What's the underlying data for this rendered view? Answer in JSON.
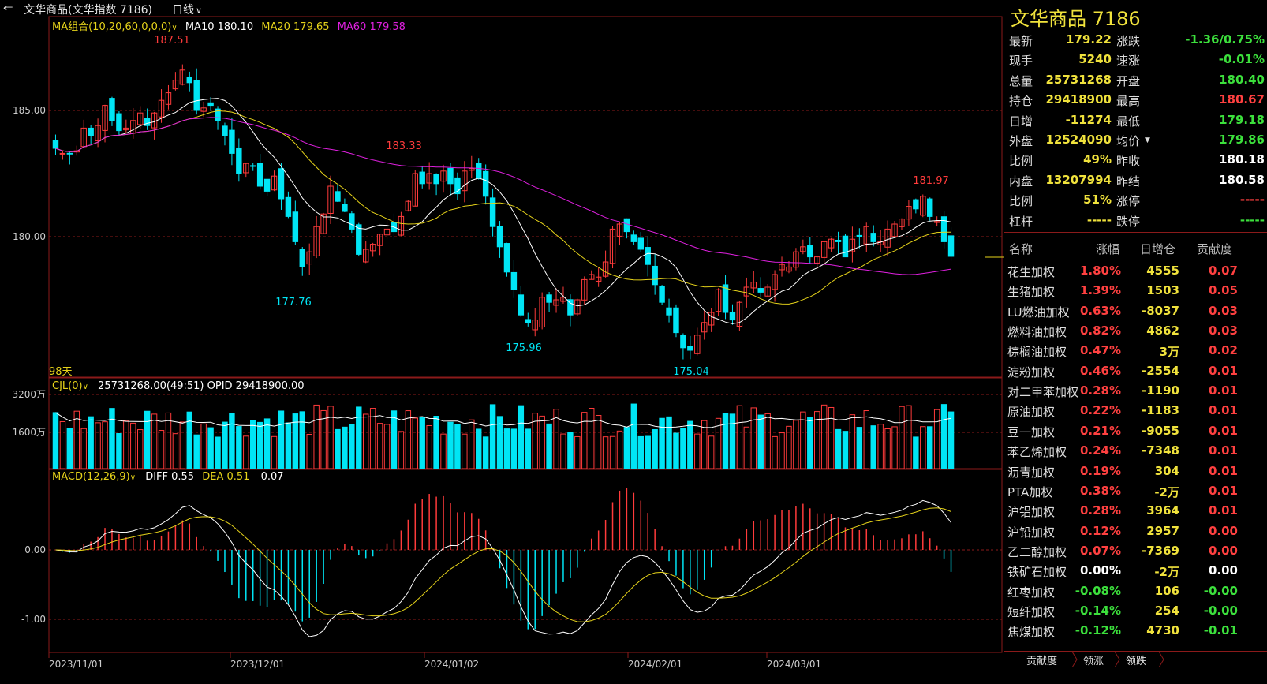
{
  "topbar": {
    "back_icon": "back-arrow-icon",
    "title": "文华商品(文华指数 7186)",
    "period": "日线",
    "period_icon": "chevron-down-icon"
  },
  "indicators": {
    "ma_label": "MA组合(10,20,60,0,0,0)",
    "ma10": "MA10 180.10",
    "ma20": "MA20 179.65",
    "ma60": "MA60 179.58",
    "days": "98天",
    "vol_label": "CJL(0)",
    "vol_values": "25731268.00(49:51)  OPID 29418900.00",
    "macd_label": "MACD(12,26,9)",
    "diff": "DIFF 0.55",
    "dea": "DEA 0.51",
    "macd": "0.07"
  },
  "colors": {
    "up": "#ff3b3b",
    "down": "#00e5f5",
    "ma10": "#ffffff",
    "ma20": "#e6d31a",
    "ma60": "#e020e0",
    "grid": "#8b1a1a",
    "accent": "#f0e23c"
  },
  "chart_data": {
    "type": "candlestick",
    "y_axis_main": [
      "185.00",
      "180.00"
    ],
    "y_axis_volume": [
      "3200万",
      "1600万"
    ],
    "y_axis_macd": [
      "0.00",
      "-1.00"
    ],
    "x_labels": [
      "2023/11/01",
      "2023/12/01",
      "2024/01/02",
      "2024/02/01",
      "2024/03/01"
    ],
    "annotations": [
      "187.51",
      "183.33",
      "177.76",
      "175.96",
      "175.04",
      "181.97"
    ],
    "closes": [
      183.5,
      183.3,
      183.3,
      183.4,
      184.3,
      184.0,
      184.4,
      185.2,
      184.6,
      184.2,
      184.3,
      184.6,
      184.9,
      184.4,
      184.9,
      185.4,
      185.7,
      186.2,
      186.6,
      186.1,
      185.0,
      185.1,
      185.2,
      184.6,
      184.0,
      183.3,
      182.5,
      182.9,
      182.8,
      182.0,
      181.8,
      182.4,
      181.5,
      180.8,
      179.8,
      178.8,
      179.4,
      180.4,
      180.9,
      182.0,
      181.4,
      181.0,
      180.3,
      179.3,
      179.5,
      179.7,
      180.1,
      180.3,
      180.2,
      180.8,
      181.4,
      182.5,
      182.1,
      182.5,
      182.1,
      182.6,
      182.1,
      181.7,
      182.6,
      182.7,
      182.3,
      181.6,
      180.4,
      179.6,
      178.6,
      177.9,
      176.9,
      176.6,
      176.7,
      177.6,
      177.4,
      177.5,
      177.6,
      176.9,
      177.5,
      178.3,
      178.5,
      178.4,
      179.0,
      180.3,
      180.5,
      180.2,
      179.8,
      179.5,
      178.9,
      178.1,
      177.4,
      176.9,
      176.2,
      175.6,
      175.5,
      176.1,
      176.6,
      177.0,
      177.9,
      177.0,
      176.7,
      177.4,
      178.0,
      178.2,
      177.8,
      178.0,
      178.5,
      178.9,
      178.8,
      179.4,
      179.6,
      179.2,
      179.2,
      179.8,
      179.9,
      179.8,
      179.2,
      179.9,
      180.0,
      180.4,
      179.8,
      179.8,
      180.3,
      180.5,
      180.7,
      181.2,
      181.1,
      181.6,
      180.8,
      180.6,
      179.8,
      179.22
    ],
    "ma10_last": 180.1,
    "ma20_last": 179.65,
    "ma60_last": 179.58,
    "diff_last": 0.55,
    "dea_last": 0.51,
    "macd_last": 0.07
  },
  "quote": {
    "title": "文华商品 7186",
    "left": [
      {
        "label": "最新",
        "value": "179.22",
        "color": "#f0e23c"
      },
      {
        "label": "现手",
        "value": "5240",
        "color": "#f0e23c"
      },
      {
        "label": "总量",
        "value": "25731268",
        "color": "#f0e23c"
      },
      {
        "label": "持仓",
        "value": "29418900",
        "color": "#f0e23c"
      },
      {
        "label": "日增",
        "value": "-11274",
        "color": "#f0e23c"
      },
      {
        "label": "外盘",
        "value": "12524090",
        "color": "#f0e23c"
      },
      {
        "label": "比例",
        "value": "49%",
        "color": "#f0e23c"
      },
      {
        "label": "内盘",
        "value": "13207994",
        "color": "#f0e23c"
      },
      {
        "label": "比例",
        "value": "51%",
        "color": "#f0e23c"
      },
      {
        "label": "杠杆",
        "value": "-----",
        "color": "#f0e23c"
      }
    ],
    "right": [
      {
        "label": "涨跌",
        "value": "-1.36/0.75%",
        "color": "#3ce03c"
      },
      {
        "label": "速涨",
        "value": "-0.01%",
        "color": "#3ce03c"
      },
      {
        "label": "开盘",
        "value": "180.40",
        "color": "#3ce03c"
      },
      {
        "label": "最高",
        "value": "180.67",
        "color": "#ff4040"
      },
      {
        "label": "最低",
        "value": "179.18",
        "color": "#3ce03c"
      },
      {
        "label": "均价",
        "value": "179.86",
        "color": "#3ce03c"
      },
      {
        "label": "昨收",
        "value": "180.18",
        "color": "#ffffff"
      },
      {
        "label": "昨结",
        "value": "180.58",
        "color": "#ffffff"
      },
      {
        "label": "涨停",
        "value": "-----",
        "color": "#ff4040"
      },
      {
        "label": "跌停",
        "value": "-----",
        "color": "#3ce03c"
      }
    ]
  },
  "contrib": {
    "headers": [
      "名称",
      "涨幅",
      "日增仓",
      "贡献度"
    ],
    "rows": [
      {
        "name": "花生加权",
        "chg": "1.80%",
        "inc": "4555",
        "con": "0.07",
        "c": "#ff4040",
        "k": "#ff4040"
      },
      {
        "name": "生猪加权",
        "chg": "1.39%",
        "inc": "1503",
        "con": "0.05",
        "c": "#ff4040",
        "k": "#ff4040"
      },
      {
        "name": "LU燃油加权",
        "chg": "0.63%",
        "inc": "-8037",
        "con": "0.03",
        "c": "#ff4040",
        "k": "#ff4040"
      },
      {
        "name": "燃料油加权",
        "chg": "0.82%",
        "inc": "4862",
        "con": "0.03",
        "c": "#ff4040",
        "k": "#ff4040"
      },
      {
        "name": "棕榈油加权",
        "chg": "0.47%",
        "inc": "3万",
        "con": "0.02",
        "c": "#ff4040",
        "k": "#ff4040"
      },
      {
        "name": "淀粉加权",
        "chg": "0.46%",
        "inc": "-2554",
        "con": "0.01",
        "c": "#ff4040",
        "k": "#ff4040"
      },
      {
        "name": "对二甲苯加权",
        "chg": "0.28%",
        "inc": "-1190",
        "con": "0.01",
        "c": "#ff4040",
        "k": "#ff4040"
      },
      {
        "name": "原油加权",
        "chg": "0.22%",
        "inc": "-1183",
        "con": "0.01",
        "c": "#ff4040",
        "k": "#ff4040"
      },
      {
        "name": "豆一加权",
        "chg": "0.21%",
        "inc": "-9055",
        "con": "0.01",
        "c": "#ff4040",
        "k": "#ff4040"
      },
      {
        "name": "苯乙烯加权",
        "chg": "0.24%",
        "inc": "-7348",
        "con": "0.01",
        "c": "#ff4040",
        "k": "#ff4040"
      },
      {
        "name": "沥青加权",
        "chg": "0.19%",
        "inc": "304",
        "con": "0.01",
        "c": "#ff4040",
        "k": "#ff4040"
      },
      {
        "name": "PTA加权",
        "chg": "0.38%",
        "inc": "-2万",
        "con": "0.01",
        "c": "#ff4040",
        "k": "#ff4040"
      },
      {
        "name": "沪铝加权",
        "chg": "0.28%",
        "inc": "3964",
        "con": "0.01",
        "c": "#ff4040",
        "k": "#ff4040"
      },
      {
        "name": "沪铅加权",
        "chg": "0.12%",
        "inc": "2957",
        "con": "0.00",
        "c": "#ff4040",
        "k": "#ff4040"
      },
      {
        "name": "乙二醇加权",
        "chg": "0.07%",
        "inc": "-7369",
        "con": "0.00",
        "c": "#ff4040",
        "k": "#ff4040"
      },
      {
        "name": "铁矿石加权",
        "chg": "0.00%",
        "inc": "-2万",
        "con": "0.00",
        "c": "#ffffff",
        "k": "#ffffff"
      },
      {
        "name": "红枣加权",
        "chg": "-0.08%",
        "inc": "106",
        "con": "-0.00",
        "c": "#3ce03c",
        "k": "#3ce03c"
      },
      {
        "name": "短纤加权",
        "chg": "-0.14%",
        "inc": "254",
        "con": "-0.00",
        "c": "#3ce03c",
        "k": "#3ce03c"
      },
      {
        "name": "焦煤加权",
        "chg": "-0.12%",
        "inc": "4730",
        "con": "-0.01",
        "c": "#3ce03c",
        "k": "#3ce03c"
      }
    ]
  },
  "tabs": [
    "贡献度",
    "领涨",
    "领跌"
  ]
}
